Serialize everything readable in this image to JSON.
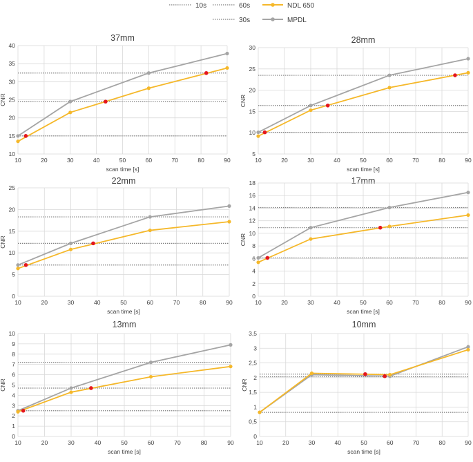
{
  "legend": {
    "items": [
      {
        "label": "10s",
        "kind": "ref"
      },
      {
        "label": "60s",
        "kind": "ref"
      },
      {
        "label": "30s",
        "kind": "ref"
      },
      {
        "label": "NDL 650",
        "kind": "series",
        "color": "#f5b82a"
      },
      {
        "label": "MPDL",
        "kind": "series",
        "color": "#a5a5a5"
      }
    ]
  },
  "colors": {
    "ndl": "#f5b82a",
    "mpdl": "#a5a5a5",
    "marker_red": "#e4161d",
    "ref": "#7f7f7f",
    "grid": "#d9d9d9"
  },
  "chart_data": [
    {
      "type": "line",
      "title": "37mm",
      "xlabel": "scan time [s]",
      "ylabel": "CNR",
      "x": [
        10,
        30,
        60,
        90
      ],
      "xlim": [
        10,
        90
      ],
      "xticks": [
        "10",
        "20",
        "30",
        "40",
        "50",
        "60",
        "70",
        "80",
        "90"
      ],
      "ylim": [
        10,
        40
      ],
      "yticks": [
        "10",
        "15",
        "20",
        "25",
        "30",
        "35",
        "40"
      ],
      "series": [
        {
          "name": "NDL 650",
          "values": [
            13.5,
            21.5,
            28.2,
            33.8
          ]
        },
        {
          "name": "MPDL",
          "values": [
            15.0,
            24.5,
            32.4,
            37.8
          ]
        }
      ],
      "reference_lines": [
        15.0,
        24.5,
        32.4
      ],
      "crossings": [
        [
          13,
          15.0
        ],
        [
          43.5,
          24.5
        ],
        [
          82,
          32.4
        ]
      ]
    },
    {
      "type": "line",
      "title": "28mm",
      "xlabel": "scan time [s]",
      "ylabel": "CNR",
      "x": [
        10,
        30,
        60,
        90
      ],
      "xlim": [
        10,
        90
      ],
      "xticks": [
        "10",
        "20",
        "30",
        "40",
        "50",
        "60",
        "70",
        "80",
        "90"
      ],
      "ylim": [
        5,
        30
      ],
      "yticks": [
        "5",
        "10",
        "15",
        "20",
        "25",
        "30"
      ],
      "series": [
        {
          "name": "NDL 650",
          "values": [
            9.2,
            15.3,
            20.6,
            24.1
          ]
        },
        {
          "name": "MPDL",
          "values": [
            10.1,
            16.4,
            23.5,
            27.4
          ]
        }
      ],
      "reference_lines": [
        10.1,
        16.4,
        23.5
      ],
      "crossings": [
        [
          12.5,
          10.1
        ],
        [
          36.5,
          16.4
        ],
        [
          85,
          23.5
        ]
      ]
    },
    {
      "type": "line",
      "title": "22mm",
      "xlabel": "scan time [s]",
      "ylabel": "CNR",
      "x": [
        10,
        30,
        60,
        90
      ],
      "xlim": [
        10,
        90
      ],
      "xticks": [
        "10",
        "20",
        "30",
        "40",
        "50",
        "60",
        "70",
        "80",
        "90"
      ],
      "ylim": [
        0,
        25
      ],
      "yticks": [
        "0",
        "5",
        "10",
        "15",
        "20",
        "25"
      ],
      "series": [
        {
          "name": "NDL 650",
          "values": [
            6.4,
            10.8,
            15.2,
            17.2
          ]
        },
        {
          "name": "MPDL",
          "values": [
            7.2,
            12.2,
            18.3,
            20.8
          ]
        }
      ],
      "reference_lines": [
        7.2,
        12.2,
        18.3
      ],
      "crossings": [
        [
          13,
          7.2
        ],
        [
          38.5,
          12.2
        ]
      ]
    },
    {
      "type": "line",
      "title": "17mm",
      "xlabel": "scan time [s]",
      "ylabel": "CNR",
      "x": [
        10,
        30,
        60,
        90
      ],
      "xlim": [
        10,
        90
      ],
      "xticks": [
        "10",
        "20",
        "30",
        "40",
        "50",
        "60",
        "70",
        "80",
        "90"
      ],
      "ylim": [
        0,
        18
      ],
      "yticks": [
        "0",
        "2",
        "4",
        "6",
        "8",
        "10",
        "12",
        "14",
        "16",
        "18"
      ],
      "series": [
        {
          "name": "NDL 650",
          "values": [
            5.4,
            9.1,
            11.1,
            12.9
          ]
        },
        {
          "name": "MPDL",
          "values": [
            6.1,
            10.9,
            14.1,
            16.5
          ]
        }
      ],
      "reference_lines": [
        6.1,
        10.9,
        14.1
      ],
      "crossings": [
        [
          13.5,
          6.1
        ],
        [
          56.5,
          10.9
        ]
      ]
    },
    {
      "type": "line",
      "title": "13mm",
      "xlabel": "scan time [s]",
      "ylabel": "CNR",
      "x": [
        10,
        30,
        60,
        90
      ],
      "xlim": [
        10,
        90
      ],
      "xticks": [
        "10",
        "20",
        "30",
        "40",
        "50",
        "60",
        "70",
        "80",
        "90"
      ],
      "ylim": [
        0,
        10
      ],
      "yticks": [
        "0",
        "1",
        "2",
        "3",
        "4",
        "5",
        "6",
        "7",
        "8",
        "9",
        "10"
      ],
      "series": [
        {
          "name": "NDL 650",
          "values": [
            2.4,
            4.3,
            5.8,
            6.8
          ]
        },
        {
          "name": "MPDL",
          "values": [
            2.5,
            4.7,
            7.2,
            8.9
          ]
        }
      ],
      "reference_lines": [
        2.5,
        4.7,
        7.2
      ],
      "crossings": [
        [
          12,
          2.5
        ],
        [
          37.5,
          4.7
        ]
      ]
    },
    {
      "type": "line",
      "title": "10mm",
      "xlabel": "scan time [s]",
      "ylabel": "CNR",
      "x": [
        10,
        30,
        60,
        90
      ],
      "xlim": [
        10,
        90
      ],
      "xticks": [
        "10",
        "20",
        "30",
        "40",
        "50",
        "60",
        "70",
        "80",
        "90"
      ],
      "ylim": [
        0,
        3.5
      ],
      "yticks": [
        "0",
        "0,5",
        "1",
        "1,5",
        "2",
        "2,5",
        "3",
        "3,5"
      ],
      "series": [
        {
          "name": "NDL 650",
          "values": [
            0.82,
            2.15,
            2.1,
            2.95
          ]
        },
        {
          "name": "MPDL",
          "values": [
            0.82,
            2.1,
            2.05,
            3.05
          ]
        }
      ],
      "reference_lines": [
        0.82,
        2.03,
        2.12
      ],
      "crossings": [
        [
          50.5,
          2.12
        ],
        [
          58,
          2.05
        ]
      ]
    }
  ]
}
